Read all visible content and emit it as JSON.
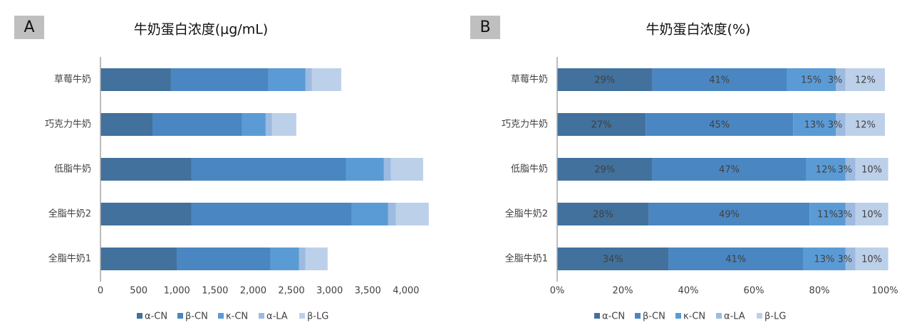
{
  "chart_data": [
    {
      "type": "bar",
      "orientation": "horizontal",
      "stacked": true,
      "label": "A",
      "title": "牛奶蛋白浓度(μg/mL)",
      "categories": [
        "草莓牛奶",
        "巧克力牛奶",
        "低脂牛奶",
        "全脂牛奶2",
        "全脂牛奶1"
      ],
      "series": [
        {
          "name": "α-CN",
          "color": "#41719c",
          "values": [
            923,
            681,
            1193,
            1193,
            998
          ]
        },
        {
          "name": "β-CN",
          "color": "#4a86c1",
          "values": [
            1277,
            1174,
            2024,
            2098,
            1230
          ]
        },
        {
          "name": "κ-CN",
          "color": "#5b9bd5",
          "values": [
            485,
            308,
            494,
            476,
            373
          ]
        },
        {
          "name": "α-LA",
          "color": "#9dbbe0",
          "values": [
            84,
            84,
            93,
            102,
            84
          ]
        },
        {
          "name": "β-LG",
          "color": "#bdd0ea",
          "values": [
            383,
            317,
            420,
            429,
            289
          ]
        }
      ],
      "xlim": [
        0,
        4300
      ],
      "xticks": [
        0,
        500,
        {
          "value": 1000,
          "label": "1,000"
        },
        {
          "value": 1500,
          "label": "1,500"
        },
        {
          "value": 2000,
          "label": "2,000"
        },
        {
          "value": 2500,
          "label": "2,500"
        },
        {
          "value": 3000,
          "label": "3,000"
        },
        {
          "value": 3500,
          "label": "3,500"
        },
        {
          "value": 4000,
          "label": "4,000"
        }
      ],
      "grid": false,
      "legend": "bottom"
    },
    {
      "type": "bar",
      "orientation": "horizontal",
      "stacked": true,
      "label": "B",
      "title": "牛奶蛋白浓度(%)",
      "categories": [
        "草莓牛奶",
        "巧克力牛奶",
        "低脂牛奶",
        "全脂牛奶2",
        "全脂牛奶1"
      ],
      "series": [
        {
          "name": "α-CN",
          "color": "#41719c",
          "values": [
            29,
            27,
            29,
            28,
            34
          ],
          "value_labels": [
            "29%",
            "27%",
            "29%",
            "28%",
            "34%"
          ]
        },
        {
          "name": "β-CN",
          "color": "#4a86c1",
          "values": [
            41,
            45,
            47,
            49,
            41
          ],
          "value_labels": [
            "41%",
            "45%",
            "47%",
            "49%",
            "41%"
          ]
        },
        {
          "name": "κ-CN",
          "color": "#5b9bd5",
          "values": [
            15,
            13,
            12,
            11,
            13
          ],
          "value_labels": [
            "15%",
            "13%",
            "12%",
            "11%",
            "13%"
          ]
        },
        {
          "name": "α-LA",
          "color": "#9dbbe0",
          "values": [
            3,
            3,
            3,
            3,
            3
          ],
          "value_labels": [
            "3%",
            "3%",
            "3%",
            "3%",
            "3%"
          ]
        },
        {
          "name": "β-LG",
          "color": "#bdd0ea",
          "values": [
            12,
            12,
            10,
            10,
            10
          ],
          "value_labels": [
            "12%",
            "12%",
            "10%",
            "10%",
            "10%"
          ]
        }
      ],
      "xlim": [
        0,
        100
      ],
      "xticks": [
        {
          "value": 0,
          "label": "0%"
        },
        {
          "value": 20,
          "label": "20%"
        },
        {
          "value": 40,
          "label": "40%"
        },
        {
          "value": 60,
          "label": "60%"
        },
        {
          "value": 80,
          "label": "80%"
        },
        {
          "value": 100,
          "label": "100%"
        }
      ],
      "grid": false,
      "legend": "bottom"
    }
  ]
}
